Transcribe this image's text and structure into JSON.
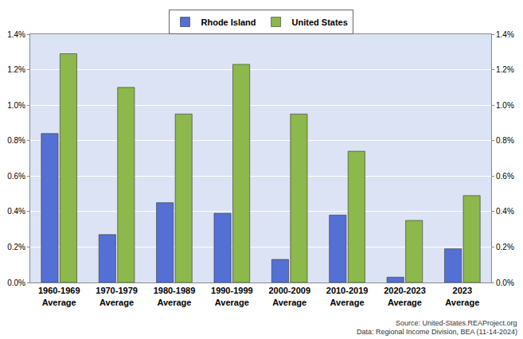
{
  "chart_data": {
    "type": "bar",
    "categories": [
      "1960-1969 Average",
      "1970-1979 Average",
      "1980-1989 Average",
      "1990-1999 Average",
      "2000-2009 Average",
      "2010-2019 Average",
      "2020-2023 Average",
      "2023 Average"
    ],
    "series": [
      {
        "name": "Rhode Island",
        "color": "#5470d4",
        "values": [
          0.84,
          0.27,
          0.45,
          0.39,
          0.13,
          0.38,
          0.03,
          0.19
        ]
      },
      {
        "name": "United States",
        "color": "#8cb84c",
        "values": [
          1.29,
          1.1,
          0.95,
          1.23,
          0.95,
          0.74,
          0.35,
          0.49
        ]
      }
    ],
    "ylim": [
      0,
      1.4
    ],
    "yticks": [
      {
        "value": 0,
        "label": "0.0%"
      },
      {
        "value": 0.2,
        "label": "0.2%"
      },
      {
        "value": 0.4,
        "label": "0.4%"
      },
      {
        "value": 0.6,
        "label": "0.6%"
      },
      {
        "value": 0.8,
        "label": "0.8%"
      },
      {
        "value": 1.0,
        "label": "1.0%"
      },
      {
        "value": 1.2,
        "label": "1.2%"
      },
      {
        "value": 1.4,
        "label": "1.4%"
      }
    ],
    "y2lim": [
      0,
      1.4
    ],
    "y2ticks": [
      {
        "value": 0,
        "label": "0.0%"
      },
      {
        "value": 0.2,
        "label": "0.2%"
      },
      {
        "value": 0.4,
        "label": "0.4%"
      },
      {
        "value": 0.6,
        "label": "0.6%"
      },
      {
        "value": 0.8,
        "label": "0.8%"
      },
      {
        "value": 1.0,
        "label": "1.0%"
      },
      {
        "value": 1.2,
        "label": "1.2%"
      },
      {
        "value": 1.4,
        "label": "1.4%"
      }
    ],
    "grid": true,
    "legend": "top",
    "annotations": [
      "Source: United-States.REAProject.org",
      "Data: Regional Income Division, BEA (11-14-2024)"
    ]
  }
}
